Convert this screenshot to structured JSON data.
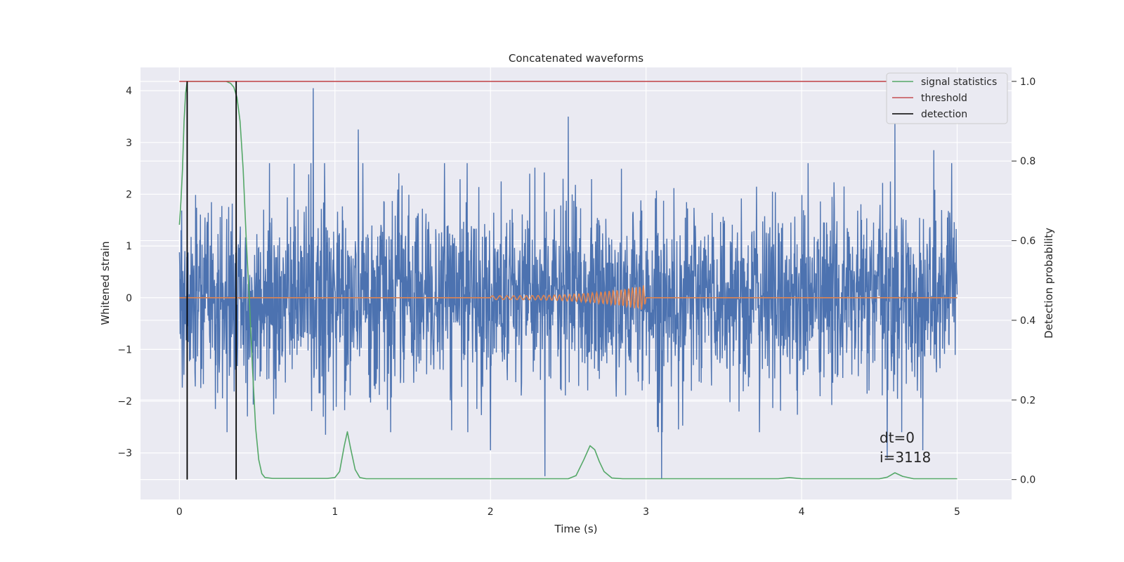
{
  "chart_data": {
    "type": "line",
    "title": "Concatenated waveforms",
    "xlabel": "Time (s)",
    "ylabel": "Whitened strain",
    "y2label": "Detection probability",
    "xlim": [
      -0.25,
      5.35
    ],
    "ylim": [
      -3.9,
      4.45
    ],
    "y2lim": [
      -0.05,
      1.035
    ],
    "xticks": [
      0,
      1,
      2,
      3,
      4,
      5
    ],
    "yticks": [
      -3,
      -2,
      -1,
      0,
      1,
      2,
      3,
      4
    ],
    "y2ticks": [
      0.0,
      0.2,
      0.4,
      0.6,
      0.8,
      1.0
    ],
    "xtick_labels": [
      "0",
      "1",
      "2",
      "3",
      "4",
      "5"
    ],
    "ytick_labels": [
      "−3",
      "−2",
      "−1",
      "0",
      "1",
      "2",
      "3",
      "4"
    ],
    "y2tick_labels": [
      "0.0",
      "0.2",
      "0.4",
      "0.6",
      "0.8",
      "1.0"
    ],
    "grid": true,
    "legend_position": "top-right",
    "colors": {
      "background": "#eaeaf2",
      "grid": "#ffffff",
      "noise": "#4c72b0",
      "template": "#dd8452",
      "statistics": "#55a868",
      "threshold": "#c44e52",
      "detection": "#000000"
    },
    "legend": [
      {
        "label": "signal statistics",
        "color": "#55a868"
      },
      {
        "label": "threshold",
        "color": "#c44e52"
      },
      {
        "label": "detection",
        "color": "#000000"
      }
    ],
    "series": [
      {
        "role": "whitened-strain-noise",
        "axis": "left",
        "x_range": [
          0,
          5
        ],
        "typical_amplitude": 0.9,
        "peaks": [
          {
            "x": 0.86,
            "y": 4.05
          },
          {
            "x": 2.5,
            "y": 3.5
          },
          {
            "x": 1.15,
            "y": 3.25
          },
          {
            "x": 4.6,
            "y": 3.4
          },
          {
            "x": 4.85,
            "y": 2.85
          },
          {
            "x": 3.1,
            "y": -3.5
          },
          {
            "x": 2.35,
            "y": -3.45
          },
          {
            "x": 0.94,
            "y": -2.65
          },
          {
            "x": 2.0,
            "y": -2.95
          },
          {
            "x": 4.78,
            "y": -2.95
          },
          {
            "x": 4.55,
            "y": -3.1
          }
        ]
      },
      {
        "role": "injected-waveform",
        "axis": "left",
        "flat_value": 0,
        "chirp_start": 2.0,
        "chirp_end": 3.0,
        "peak_amplitude": 0.25
      },
      {
        "name": "signal statistics",
        "axis": "right",
        "x": [
          0.0,
          0.01,
          0.02,
          0.03,
          0.04,
          0.05,
          0.06,
          0.08,
          0.1,
          0.15,
          0.2,
          0.25,
          0.3,
          0.33,
          0.35,
          0.37,
          0.39,
          0.41,
          0.43,
          0.45,
          0.47,
          0.49,
          0.51,
          0.53,
          0.55,
          0.6,
          0.8,
          0.95,
          1.0,
          1.03,
          1.06,
          1.08,
          1.1,
          1.13,
          1.16,
          1.2,
          1.4,
          2.0,
          2.5,
          2.55,
          2.6,
          2.64,
          2.67,
          2.7,
          2.73,
          2.78,
          2.85,
          3.0,
          3.5,
          3.85,
          3.92,
          4.0,
          4.2,
          4.5,
          4.55,
          4.6,
          4.65,
          4.72,
          4.8,
          5.0
        ],
        "y": [
          0.64,
          0.7,
          0.78,
          0.9,
          0.97,
          1.0,
          1.0,
          1.0,
          1.0,
          1.0,
          1.0,
          1.0,
          1.0,
          0.995,
          0.985,
          0.96,
          0.9,
          0.78,
          0.6,
          0.45,
          0.28,
          0.13,
          0.05,
          0.015,
          0.005,
          0.003,
          0.003,
          0.003,
          0.005,
          0.02,
          0.085,
          0.12,
          0.08,
          0.025,
          0.005,
          0.002,
          0.002,
          0.002,
          0.002,
          0.01,
          0.05,
          0.085,
          0.075,
          0.045,
          0.02,
          0.004,
          0.002,
          0.002,
          0.002,
          0.002,
          0.005,
          0.002,
          0.002,
          0.002,
          0.006,
          0.017,
          0.008,
          0.002,
          0.002,
          0.002
        ]
      },
      {
        "name": "threshold",
        "axis": "right",
        "x": [
          0,
          5
        ],
        "y": [
          1.0,
          1.0
        ]
      },
      {
        "name": "detection",
        "axis": "right",
        "x": [
          0.05,
          0.365
        ],
        "y_range": [
          0.0,
          1.0
        ]
      }
    ],
    "annotations": [
      "dt=0",
      "i=3118"
    ],
    "annotation_position": {
      "x": 4.5,
      "y": -2.7
    }
  }
}
